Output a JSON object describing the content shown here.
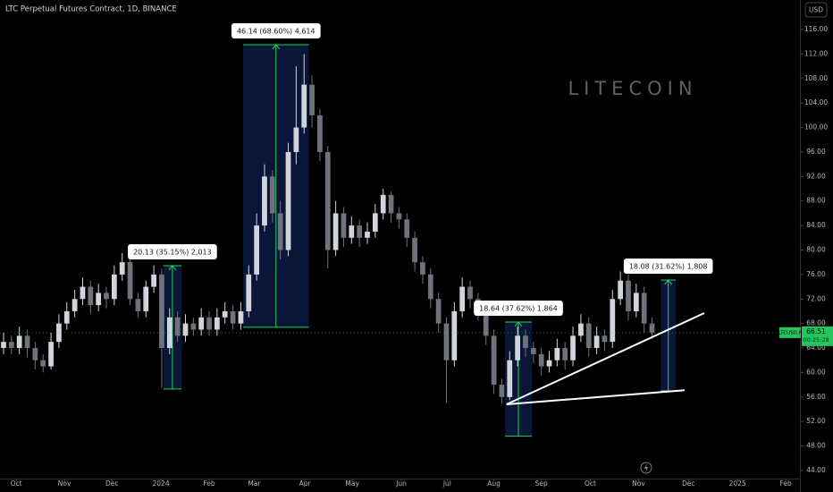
{
  "chart_data": {
    "type": "candlestick",
    "title": "LTC Perpetual Futures Contract, 1D, BINANCE",
    "watermark": "LITECOIN",
    "currency": "USD",
    "grid": false,
    "up_color": "#d1d4dc",
    "down_color": "#6f727c",
    "candles": [
      [
        64,
        66.5,
        63,
        65
      ],
      [
        65,
        66,
        63,
        64
      ],
      [
        64,
        67.5,
        63,
        66
      ],
      [
        66,
        67,
        62.5,
        64
      ],
      [
        64,
        65,
        60.5,
        62
      ],
      [
        62,
        63,
        60,
        61
      ],
      [
        61,
        66.5,
        60.5,
        65
      ],
      [
        65,
        69.5,
        64,
        68
      ],
      [
        68,
        71.5,
        67,
        70
      ],
      [
        70,
        73.5,
        69,
        72
      ],
      [
        72,
        75.5,
        71,
        74
      ],
      [
        74,
        75,
        69.5,
        71
      ],
      [
        71,
        74.5,
        70,
        73
      ],
      [
        73,
        74,
        70.5,
        72
      ],
      [
        72,
        77.5,
        71,
        76
      ],
      [
        76,
        79.5,
        75,
        78
      ],
      [
        78,
        78.5,
        71,
        72
      ],
      [
        72,
        73,
        69,
        70
      ],
      [
        70,
        75,
        69,
        74
      ],
      [
        74,
        77.5,
        73,
        76
      ],
      [
        76,
        77,
        57.5,
        64
      ],
      [
        64,
        70.5,
        63,
        69
      ],
      [
        69,
        70,
        65,
        66
      ],
      [
        66,
        69.5,
        65,
        68
      ],
      [
        68,
        69,
        66,
        67
      ],
      [
        67,
        70.5,
        66,
        69
      ],
      [
        69,
        70,
        66,
        67
      ],
      [
        67,
        70.5,
        66,
        69
      ],
      [
        69,
        71.5,
        68,
        70
      ],
      [
        70,
        71,
        67,
        68
      ],
      [
        68,
        71.5,
        67,
        70
      ],
      [
        70,
        77.5,
        69,
        76
      ],
      [
        76,
        86,
        75,
        84
      ],
      [
        84,
        94,
        83,
        92
      ],
      [
        92,
        93,
        84.5,
        86
      ],
      [
        86,
        88,
        78.5,
        80
      ],
      [
        80,
        97.5,
        79,
        96
      ],
      [
        96,
        110,
        94,
        100
      ],
      [
        100,
        112,
        99,
        107
      ],
      [
        107,
        108.5,
        100,
        102
      ],
      [
        102,
        103,
        94.5,
        96
      ],
      [
        96,
        97,
        77,
        80
      ],
      [
        80,
        88,
        79,
        86
      ],
      [
        86,
        87,
        80.5,
        82
      ],
      [
        82,
        85.5,
        81,
        84
      ],
      [
        84,
        85,
        80.5,
        82
      ],
      [
        82,
        84.5,
        81,
        83
      ],
      [
        83,
        87.5,
        82,
        86
      ],
      [
        86,
        90,
        85,
        89
      ],
      [
        89,
        89.5,
        84.5,
        86
      ],
      [
        86,
        87,
        83.5,
        85
      ],
      [
        85,
        86,
        80.5,
        82
      ],
      [
        82,
        83,
        76.5,
        78
      ],
      [
        78,
        79,
        74.5,
        76
      ],
      [
        76,
        77,
        70.5,
        72
      ],
      [
        72,
        73,
        66.5,
        68
      ],
      [
        68,
        69,
        55,
        62
      ],
      [
        62,
        71.5,
        61,
        70
      ],
      [
        70,
        75.5,
        69,
        74
      ],
      [
        74,
        75,
        70.5,
        72
      ],
      [
        72,
        73,
        68.5,
        70
      ],
      [
        70,
        71,
        64.5,
        66
      ],
      [
        66,
        67,
        56.5,
        58
      ],
      [
        58,
        59,
        55,
        56
      ],
      [
        56,
        63.5,
        55.5,
        62
      ],
      [
        62,
        67.5,
        61,
        66
      ],
      [
        66,
        67,
        62.5,
        64
      ],
      [
        64,
        65,
        61.5,
        63
      ],
      [
        63,
        64,
        59.5,
        61
      ],
      [
        61,
        63.5,
        60,
        62
      ],
      [
        62,
        65.5,
        61,
        64
      ],
      [
        64,
        65,
        60.5,
        62
      ],
      [
        62,
        67.5,
        61,
        66
      ],
      [
        66,
        69.5,
        65,
        68
      ],
      [
        68,
        69,
        62.5,
        64
      ],
      [
        64,
        67.5,
        63,
        66
      ],
      [
        66,
        67,
        63.5,
        65
      ],
      [
        65,
        73.5,
        64,
        72
      ],
      [
        72,
        76.5,
        71,
        75
      ],
      [
        75,
        76,
        68.5,
        70
      ],
      [
        70,
        74.5,
        69,
        73
      ],
      [
        73,
        74,
        66.5,
        68
      ],
      [
        68,
        69,
        65.5,
        66.51
      ]
    ],
    "xlim": [
      -0.45,
      100.7
    ],
    "xticks": [
      {
        "value": 1.6,
        "label": "Oct"
      },
      {
        "value": 7.7,
        "label": "Nov"
      },
      {
        "value": 13.7,
        "label": "Dec"
      },
      {
        "value": 19.9,
        "label": "2024"
      },
      {
        "value": 26,
        "label": "Feb"
      },
      {
        "value": 31.7,
        "label": "Mar"
      },
      {
        "value": 38.1,
        "label": "Apr"
      },
      {
        "value": 44.1,
        "label": "May"
      },
      {
        "value": 50.3,
        "label": "Jun"
      },
      {
        "value": 56.1,
        "label": "Jul"
      },
      {
        "value": 62,
        "label": "Aug"
      },
      {
        "value": 68,
        "label": "Sep"
      },
      {
        "value": 74.2,
        "label": "Oct"
      },
      {
        "value": 80.3,
        "label": "Nov"
      },
      {
        "value": 86.6,
        "label": "Dec"
      },
      {
        "value": 92.8,
        "label": "2025"
      },
      {
        "value": 98.9,
        "label": "Feb"
      }
    ],
    "ylim": [
      42.68,
      120.82
    ],
    "yticks": [
      {
        "value": 116,
        "label": "116.00"
      },
      {
        "value": 112,
        "label": "112.00"
      },
      {
        "value": 108,
        "label": "108.00"
      },
      {
        "value": 104,
        "label": "104.00"
      },
      {
        "value": 100,
        "label": "100.00"
      },
      {
        "value": 96,
        "label": "96.00"
      },
      {
        "value": 92,
        "label": "92.00"
      },
      {
        "value": 88,
        "label": "88.00"
      },
      {
        "value": 84,
        "label": "84.00"
      },
      {
        "value": 80,
        "label": "80.00"
      },
      {
        "value": 76,
        "label": "76.00"
      },
      {
        "value": 72,
        "label": "72.00"
      },
      {
        "value": 68,
        "label": "68.00"
      },
      {
        "value": 64,
        "label": "64.00"
      },
      {
        "value": 60,
        "label": "60.00"
      },
      {
        "value": 56,
        "label": "56.00"
      },
      {
        "value": 52,
        "label": "52.00"
      },
      {
        "value": 48,
        "label": "48.00"
      },
      {
        "value": 44,
        "label": "44.00"
      }
    ],
    "measurements": [
      {
        "label": "20.13 (35.15%) 2,013",
        "from": 57.31,
        "to": 77.44,
        "start": 20.2,
        "end": 22.5
      },
      {
        "label": "46.14 (68.60%) 4,614",
        "from": 67.38,
        "to": 113.52,
        "start": 30.3,
        "end": 38.6
      },
      {
        "label": "18.64 (37.62%) 1,864",
        "from": 49.6,
        "to": 68.24,
        "start": 63.4,
        "end": 66.8
      },
      {
        "label": "18.08 (31.62%) 1,808",
        "from": 57.02,
        "to": 75.1,
        "start": 83.1,
        "end": 85.0
      }
    ],
    "trend_lines": [
      {
        "x": [
          63.6,
          88.6
        ],
        "y": [
          54.8,
          69.7
        ]
      },
      {
        "x": [
          63.6,
          86.1
        ],
        "y": [
          54.8,
          57.1
        ]
      }
    ],
    "price_label": {
      "symbol": "LTCUSD.P",
      "value": 66.51,
      "countdown": "00:25:28",
      "color": "#22c55e"
    }
  }
}
